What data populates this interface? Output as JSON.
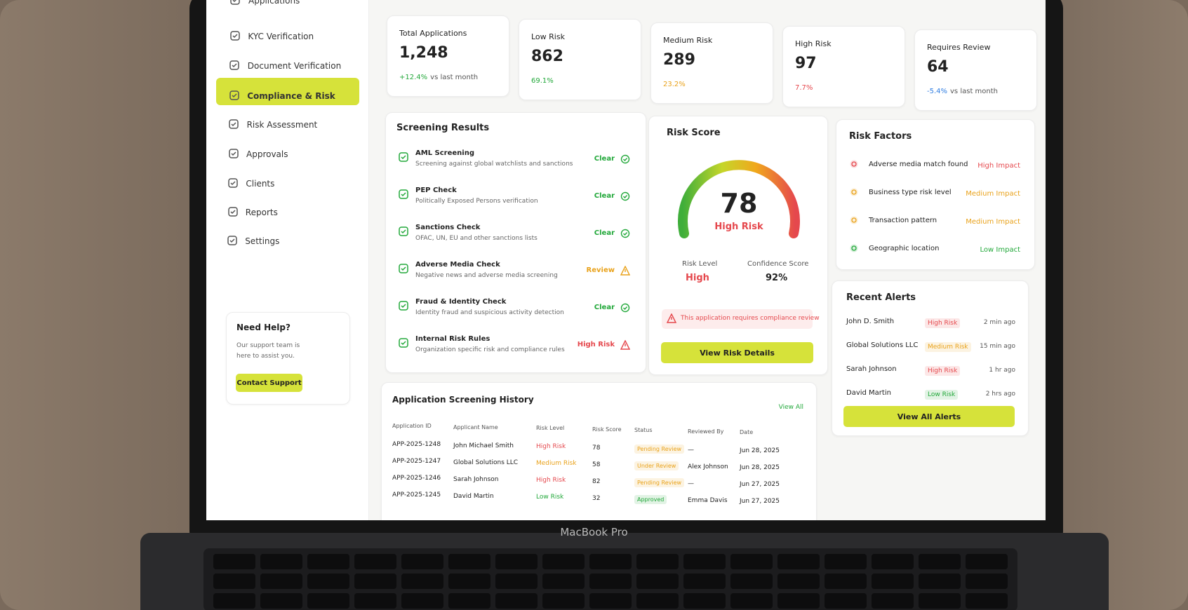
{
  "sidebar": {
    "nav": [
      "Applications",
      "KYC Verification",
      "Document Verification",
      "Compliance & Risk",
      "Risk Assessment",
      "Approvals",
      "Clients",
      "Reports",
      "Settings"
    ],
    "help": {
      "title": "Need Help?",
      "text": "Our support team is here to assist you.",
      "button": "Contact Support"
    }
  },
  "stats": [
    {
      "label": "Total Applications",
      "value": "1,248",
      "change": "+12.4%",
      "note": "vs last month",
      "color": "#22a83a"
    },
    {
      "label": "Low Risk",
      "value": "862",
      "change": "69.1%",
      "color": "#22a83a"
    },
    {
      "label": "Medium Risk",
      "value": "289",
      "change": "23.2%",
      "color": "#e9a21b"
    },
    {
      "label": "High Risk",
      "value": "97",
      "change": "7.7%",
      "color": "#e5484d"
    },
    {
      "label": "Requires Review",
      "value": "64",
      "change": "-5.4%",
      "note": "vs last month",
      "color": "#2f7de1"
    }
  ],
  "screening": {
    "title": "Screening Results",
    "items": [
      {
        "name": "AML Screening",
        "desc": "Screening against global watchlists and sanctions",
        "status": "Clear",
        "color": "#22a83a"
      },
      {
        "name": "PEP Check",
        "desc": "Politically Exposed Persons verification",
        "status": "Clear",
        "color": "#22a83a"
      },
      {
        "name": "Sanctions Check",
        "desc": "OFAC, UN, EU and other sanctions lists",
        "status": "Clear",
        "color": "#22a83a"
      },
      {
        "name": "Adverse Media Check",
        "desc": "Negative news and adverse media screening",
        "status": "Review",
        "color": "#e9a21b"
      },
      {
        "name": "Fraud & Identity Check",
        "desc": "Identity fraud and suspicious activity detection",
        "status": "Clear",
        "color": "#22a83a"
      },
      {
        "name": "Internal Risk Rules",
        "desc": "Organization specific risk and compliance rules",
        "status": "High Risk",
        "color": "#e5484d"
      }
    ]
  },
  "risk_score": {
    "title": "Risk Score",
    "score": "78",
    "rating": "High Risk",
    "level_label": "Risk Level",
    "level": "High",
    "confidence_label": "Confidence Score",
    "confidence": "92%",
    "warning": "This application requires compliance review",
    "button": "View Risk Details"
  },
  "risk_factors": {
    "title": "Risk Factors",
    "items": [
      {
        "name": "Adverse media match found",
        "impact": "High Impact",
        "color": "#e5484d"
      },
      {
        "name": "Business type risk level",
        "impact": "Medium Impact",
        "color": "#e9a21b"
      },
      {
        "name": "Transaction pattern",
        "impact": "Medium Impact",
        "color": "#e9a21b"
      },
      {
        "name": "Geographic location",
        "impact": "Low Impact",
        "color": "#22a83a"
      }
    ]
  },
  "alerts": {
    "title": "Recent Alerts",
    "items": [
      {
        "name": "John D. Smith",
        "level": "High Risk",
        "time": "2 min ago",
        "color": "#e5484d"
      },
      {
        "name": "Global Solutions LLC",
        "level": "Medium Risk",
        "time": "15 min ago",
        "color": "#e9a21b"
      },
      {
        "name": "Sarah Johnson",
        "level": "High Risk",
        "time": "1 hr ago",
        "color": "#e5484d"
      },
      {
        "name": "David Martin",
        "level": "Low Risk",
        "time": "2 hrs ago",
        "color": "#22a83a"
      }
    ],
    "button": "View All Alerts"
  },
  "history": {
    "title": "Application Screening History",
    "view_all": "View All",
    "columns": [
      "Application ID",
      "Applicant Name",
      "Risk Level",
      "Risk Score",
      "Status",
      "Reviewed By",
      "Date"
    ],
    "rows": [
      [
        "APP-2025-1248",
        "John Michael Smith",
        "High Risk",
        "78",
        "Pending Review",
        "—",
        "Jun 28, 2025"
      ],
      [
        "APP-2025-1247",
        "Global Solutions LLC",
        "Medium Risk",
        "58",
        "Under Review",
        "Alex Johnson",
        "Jun 28, 2025"
      ],
      [
        "APP-2025-1246",
        "Sarah Johnson",
        "High Risk",
        "82",
        "Pending Review",
        "—",
        "Jun 27, 2025"
      ],
      [
        "APP-2025-1245",
        "David Martin",
        "Low Risk",
        "32",
        "Approved",
        "Emma Davis",
        "Jun 27, 2025"
      ]
    ],
    "risk_colors": [
      "#e5484d",
      "#e9a21b",
      "#e5484d",
      "#22a83a"
    ],
    "status_colors": [
      "#e9a21b",
      "#e9a21b",
      "#e9a21b",
      "#22a83a"
    ]
  },
  "device": "MacBook Pro"
}
